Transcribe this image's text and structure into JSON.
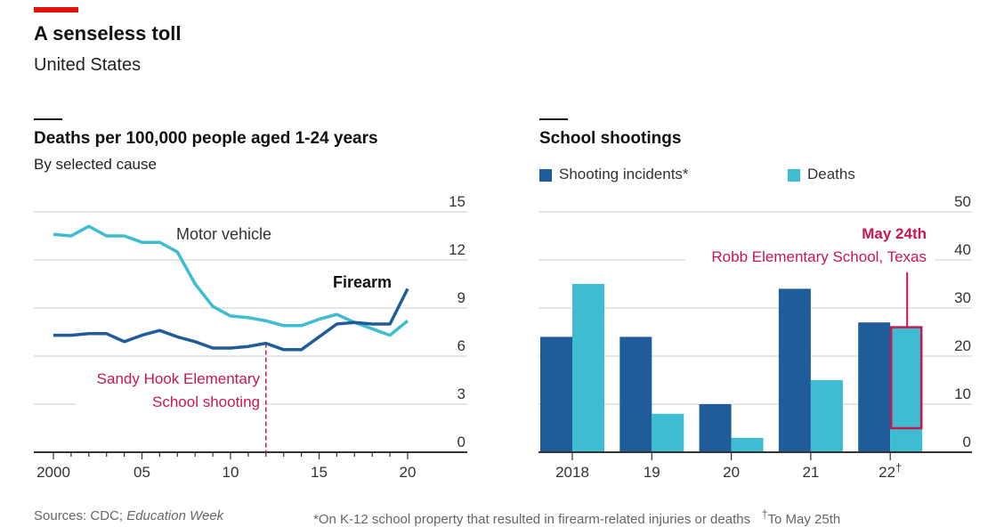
{
  "header": {
    "title": "A senseless toll",
    "subtitle": "United States",
    "accent": "#e3120b"
  },
  "chart_data": [
    {
      "type": "line",
      "title": "Deaths per 100,000 people aged 1-24 years",
      "subtitle": "By selected cause",
      "x": [
        2000,
        2001,
        2002,
        2003,
        2004,
        2005,
        2006,
        2007,
        2008,
        2009,
        2010,
        2011,
        2012,
        2013,
        2014,
        2015,
        2016,
        2017,
        2018,
        2019,
        2020
      ],
      "xticks": [
        "2000",
        "05",
        "10",
        "15",
        "20"
      ],
      "ylim": [
        0,
        15
      ],
      "yticks": [
        "0",
        "3",
        "6",
        "9",
        "12",
        "15"
      ],
      "grid": true,
      "series": [
        {
          "name": "Motor vehicle",
          "color": "#3ebcd2",
          "values": [
            13.6,
            13.5,
            14.1,
            13.5,
            13.5,
            13.1,
            13.1,
            12.5,
            10.5,
            9.1,
            8.5,
            8.4,
            8.2,
            7.9,
            7.9,
            8.3,
            8.6,
            8.1,
            7.7,
            7.3,
            8.2
          ]
        },
        {
          "name": "Firearm",
          "color": "#1f5c99",
          "values": [
            7.3,
            7.3,
            7.4,
            7.4,
            6.9,
            7.3,
            7.6,
            7.2,
            6.9,
            6.5,
            6.5,
            6.6,
            6.8,
            6.4,
            6.4,
            7.2,
            8.0,
            8.1,
            8.0,
            8.0,
            10.2
          ]
        }
      ],
      "annotation": {
        "x": 2012,
        "text1": "Sandy Hook Elementary",
        "text2": "School shooting",
        "color": "#c7174f"
      }
    },
    {
      "type": "bar",
      "title": "School shootings",
      "categories": [
        "2018",
        "19",
        "20",
        "21",
        "22"
      ],
      "category_note": "†",
      "ylim": [
        0,
        50
      ],
      "yticks": [
        "0",
        "10",
        "20",
        "30",
        "40",
        "50"
      ],
      "grid": true,
      "series": [
        {
          "name": "Shooting incidents*",
          "color": "#1f5c99",
          "values": [
            24,
            24,
            10,
            34,
            27
          ]
        },
        {
          "name": "Deaths",
          "color": "#3ebcd2",
          "values": [
            35,
            8,
            3,
            15,
            26
          ]
        }
      ],
      "annotation": {
        "title": "May 24th",
        "text": "Robb Elementary School, Texas",
        "highlight_deaths": 21,
        "color": "#c7174f"
      }
    }
  ],
  "footer": {
    "sources_prefix": "Sources: CDC; ",
    "sources_italic": "Education Week",
    "note1": "*On K-12 school property that resulted in firearm-related injuries or deaths",
    "note2_mark": "†",
    "note2": "To May 25th"
  }
}
